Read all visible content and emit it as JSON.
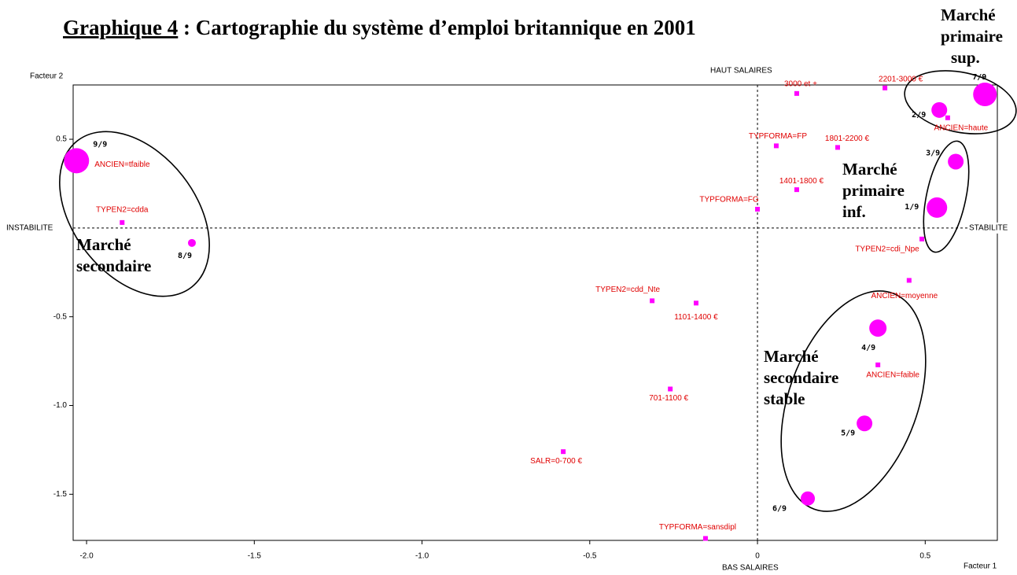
{
  "chart_data": {
    "type": "scatter",
    "title_label": "Graphique 4",
    "title": " : Cartographie du système d’emploi britannique en 2001",
    "xlabel": "Facteur 1",
    "ylabel": "Facteur 2",
    "axis_ends": {
      "top": "HAUT SALAIRES",
      "bottom": "BAS SALAIRES",
      "left": "INSTABILITE",
      "right": "STABILITE"
    },
    "xlim": [
      -2.04,
      0.715
    ],
    "ylim": [
      -1.76,
      0.806
    ],
    "xticks": [
      {
        "value": -2,
        "label": "-2.0"
      },
      -1.5,
      {
        "value": -1,
        "label": "-1.0"
      },
      -0.5,
      0,
      0.5
    ],
    "yticks": [
      0.5,
      -0.5,
      {
        "value": -1,
        "label": "-1.0"
      },
      -1.5
    ],
    "series": [
      {
        "marker": "square",
        "color": "#ff00ff",
        "label_color": "#e00000",
        "labels": [
          "3000 et +",
          "2201-3000 €",
          "ANCIEN=haute",
          "TYPFORMA=FP",
          "1801-2200 €",
          "1401-1800 €",
          "TYPFORMA=FG",
          "TYPEN2=cdi_Npe",
          "ANCIEN=moyenne",
          "TYPEN2=cdd_Nte",
          "1101-1400 €",
          "ANCIEN=faible",
          "701-1100 €",
          "SALR=0-700 €",
          "TYPFORMA=sansdipl",
          "ANCIEN=tfaible",
          "TYPEN2=cdda"
        ],
        "x": [
          0.117,
          0.38,
          0.567,
          0.056,
          0.239,
          0.117,
          0.0,
          0.49,
          0.452,
          -0.314,
          -0.183,
          0.359,
          -0.26,
          -0.579,
          -0.155,
          -2.03,
          -1.894
        ],
        "y": [
          0.758,
          0.789,
          0.621,
          0.463,
          0.454,
          0.216,
          0.106,
          -0.062,
          -0.295,
          -0.41,
          -0.423,
          -0.771,
          -0.907,
          -1.26,
          -1.749,
          0.379,
          0.031
        ]
      },
      {
        "marker": "circle",
        "color": "#ff00ff",
        "label_color": "#000000",
        "labels": [
          "9/9",
          "8/9",
          "7/9",
          "2/9",
          "3/9",
          "1/9",
          "4/9",
          "5/9",
          "6/9"
        ],
        "x": [
          -2.03,
          -1.686,
          0.678,
          0.542,
          0.591,
          0.535,
          0.359,
          0.319,
          0.15
        ],
        "y": [
          0.379,
          -0.084,
          0.753,
          0.665,
          0.374,
          0.115,
          -0.564,
          -1.101,
          -1.524
        ],
        "sizes": [
          16,
          5,
          15,
          10,
          10,
          13,
          11,
          10,
          9
        ]
      }
    ],
    "annotations": [
      {
        "lines": [
          "Marché",
          "secondaire"
        ]
      },
      {
        "lines": [
          "Marché",
          "primaire",
          "inf."
        ]
      },
      {
        "lines": [
          "Marché",
          "secondaire",
          "stable"
        ]
      },
      {
        "lines": [
          "Marché",
          "primaire",
          "sup."
        ]
      }
    ]
  }
}
